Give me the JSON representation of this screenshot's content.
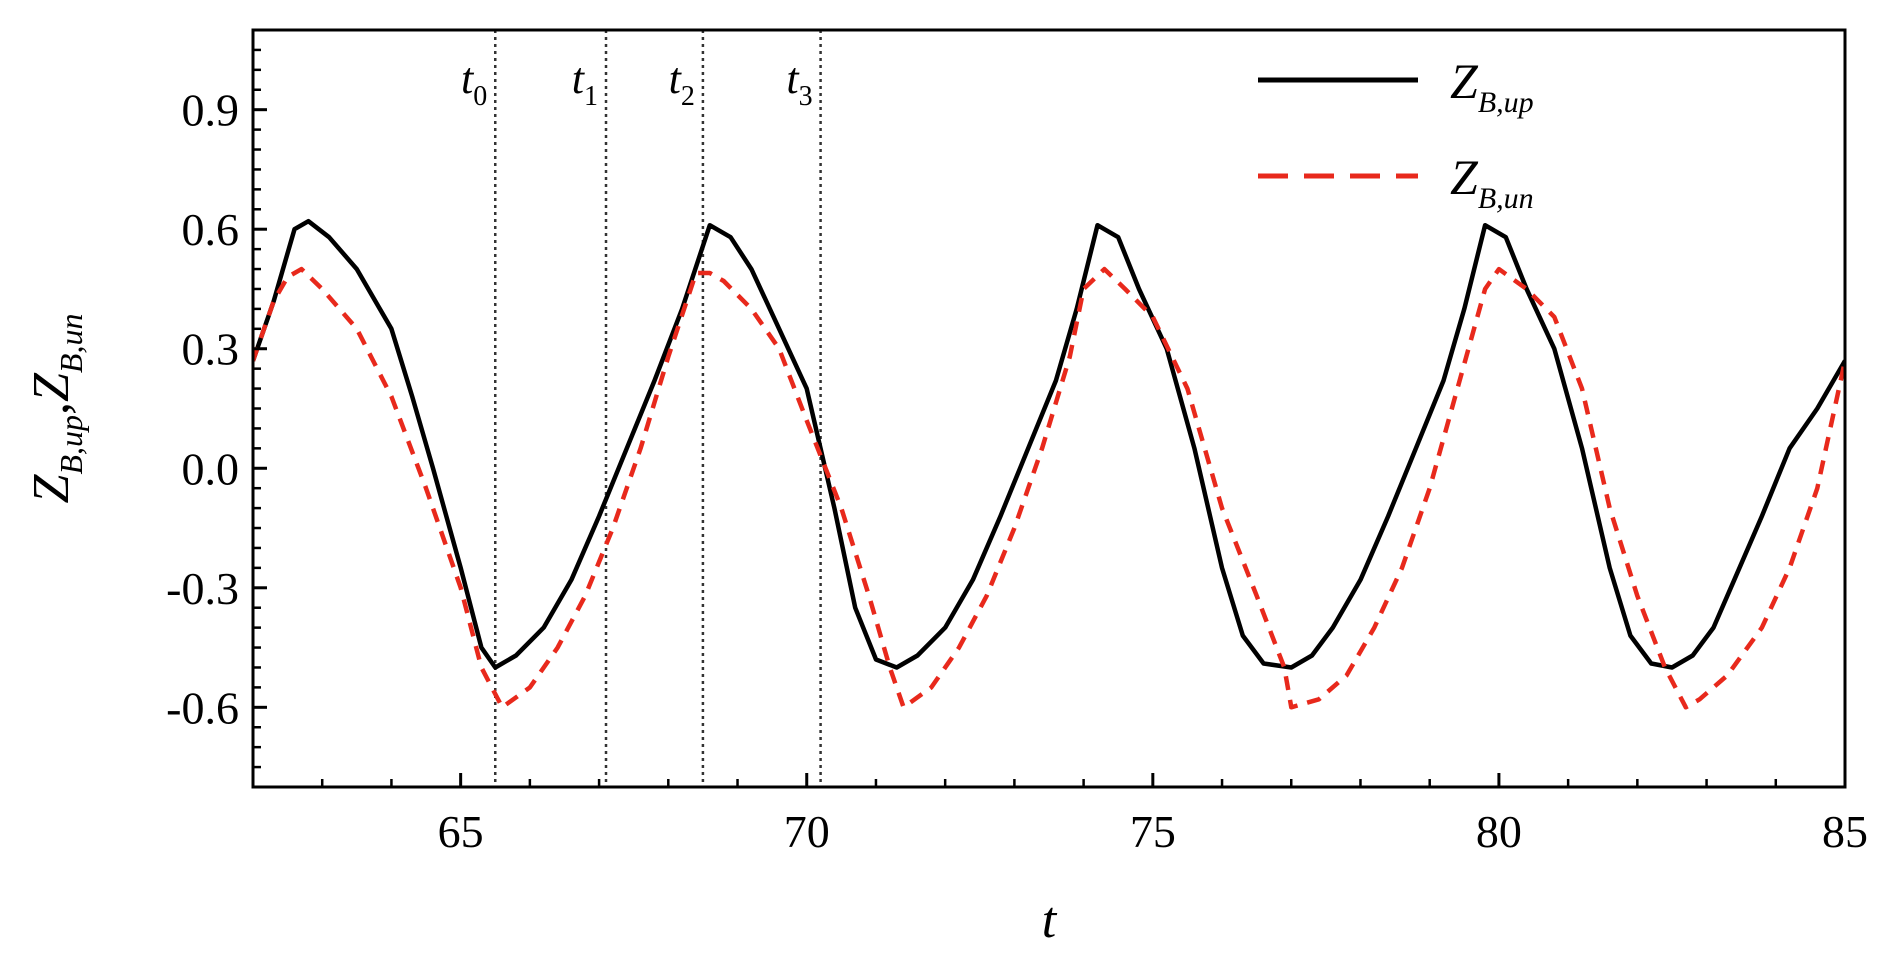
{
  "chart_data": {
    "type": "line",
    "xlabel": "t",
    "ylabel": {
      "parts": [
        {
          "main": "Z",
          "sub": "B,up"
        },
        {
          "main": "Z",
          "sub": "B,un"
        }
      ],
      "separator": ","
    },
    "xlim": [
      62,
      85
    ],
    "ylim": [
      -0.8,
      1.1
    ],
    "x_ticks": [
      65,
      70,
      75,
      80,
      85
    ],
    "x_tick_labels": [
      "65",
      "70",
      "75",
      "80",
      "85"
    ],
    "y_ticks": [
      -0.6,
      -0.3,
      0.0,
      0.3,
      0.6,
      0.9
    ],
    "y_tick_labels": [
      "-0.6",
      "-0.3",
      "0.0",
      "0.3",
      "0.6",
      "0.9"
    ],
    "grid": false,
    "legend_position": "top-right",
    "series": [
      {
        "main": "Z",
        "sub": "B,up",
        "color": "#000000",
        "style": "solid",
        "x": [
          62.0,
          62.3,
          62.6,
          62.8,
          63.1,
          63.5,
          64.0,
          64.3,
          64.6,
          65.0,
          65.3,
          65.5,
          65.8,
          66.2,
          66.6,
          67.0,
          67.4,
          67.8,
          68.2,
          68.6,
          68.9,
          69.2,
          69.6,
          70.0,
          70.4,
          70.7,
          71.0,
          71.3,
          71.6,
          72.0,
          72.4,
          72.8,
          73.2,
          73.6,
          73.9,
          74.2,
          74.5,
          74.8,
          75.2,
          75.6,
          76.0,
          76.3,
          76.6,
          77.0,
          77.3,
          77.6,
          78.0,
          78.4,
          78.8,
          79.2,
          79.5,
          79.8,
          80.1,
          80.4,
          80.8,
          81.2,
          81.6,
          81.9,
          82.2,
          82.5,
          82.8,
          83.1,
          83.4,
          83.8,
          84.2,
          84.6,
          85.0
        ],
        "y": [
          0.27,
          0.42,
          0.6,
          0.62,
          0.58,
          0.5,
          0.35,
          0.18,
          0.0,
          -0.25,
          -0.45,
          -0.5,
          -0.47,
          -0.4,
          -0.28,
          -0.12,
          0.05,
          0.22,
          0.4,
          0.61,
          0.58,
          0.5,
          0.35,
          0.2,
          -0.1,
          -0.35,
          -0.48,
          -0.5,
          -0.47,
          -0.4,
          -0.28,
          -0.12,
          0.05,
          0.22,
          0.4,
          0.61,
          0.58,
          0.45,
          0.3,
          0.05,
          -0.25,
          -0.42,
          -0.49,
          -0.5,
          -0.47,
          -0.4,
          -0.28,
          -0.12,
          0.05,
          0.22,
          0.4,
          0.61,
          0.58,
          0.45,
          0.3,
          0.05,
          -0.25,
          -0.42,
          -0.49,
          -0.5,
          -0.47,
          -0.4,
          -0.28,
          -0.12,
          0.05,
          0.15,
          0.27
        ]
      },
      {
        "main": "Z",
        "sub": "B,un",
        "color": "#e8291c",
        "style": "dashed",
        "x": [
          62.0,
          62.3,
          62.5,
          62.7,
          63.0,
          63.5,
          64.0,
          64.5,
          65.0,
          65.3,
          65.6,
          66.0,
          66.4,
          66.8,
          67.2,
          67.6,
          68.0,
          68.4,
          68.6,
          68.8,
          69.2,
          69.6,
          70.0,
          70.5,
          70.9,
          71.2,
          71.4,
          71.8,
          72.2,
          72.6,
          73.0,
          73.4,
          73.8,
          74.0,
          74.3,
          74.6,
          75.0,
          75.5,
          76.0,
          76.5,
          76.9,
          77.0,
          77.4,
          77.8,
          78.2,
          78.6,
          79.0,
          79.4,
          79.8,
          80.0,
          80.4,
          80.8,
          81.2,
          81.6,
          82.0,
          82.4,
          82.7,
          82.9,
          83.3,
          83.8,
          84.2,
          84.6,
          85.0
        ],
        "y": [
          0.27,
          0.42,
          0.48,
          0.5,
          0.45,
          0.35,
          0.18,
          -0.05,
          -0.3,
          -0.5,
          -0.6,
          -0.55,
          -0.45,
          -0.32,
          -0.15,
          0.05,
          0.28,
          0.49,
          0.49,
          0.47,
          0.4,
          0.3,
          0.12,
          -0.1,
          -0.32,
          -0.5,
          -0.6,
          -0.55,
          -0.45,
          -0.32,
          -0.15,
          0.05,
          0.28,
          0.45,
          0.5,
          0.45,
          0.38,
          0.2,
          -0.1,
          -0.32,
          -0.5,
          -0.6,
          -0.58,
          -0.52,
          -0.4,
          -0.25,
          -0.05,
          0.2,
          0.45,
          0.5,
          0.45,
          0.38,
          0.2,
          -0.1,
          -0.32,
          -0.5,
          -0.6,
          -0.58,
          -0.52,
          -0.4,
          -0.25,
          -0.05,
          0.27
        ]
      }
    ],
    "vlines": [
      {
        "main": "t",
        "sub": "0",
        "x": 65.5
      },
      {
        "main": "t",
        "sub": "1",
        "x": 67.1
      },
      {
        "main": "t",
        "sub": "2",
        "x": 68.5
      },
      {
        "main": "t",
        "sub": "3",
        "x": 70.2
      }
    ]
  }
}
